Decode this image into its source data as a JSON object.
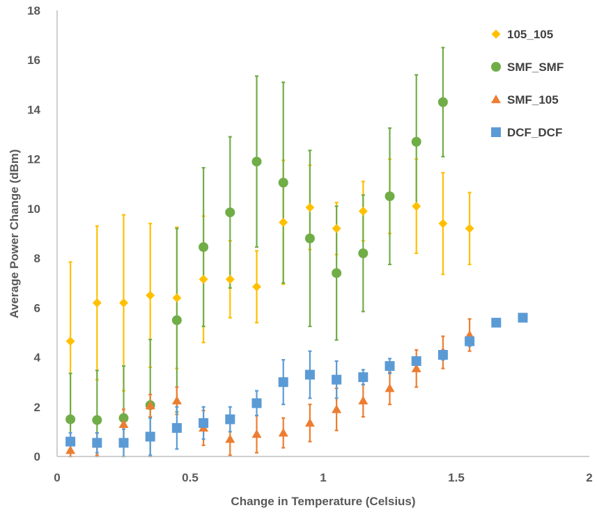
{
  "chart_data": {
    "type": "scatter",
    "title": "",
    "xlabel": "Change in Temperature  (Celsius)",
    "ylabel": "Average Power Change (dBm)",
    "xlim": [
      0,
      2
    ],
    "ylim": [
      0,
      18
    ],
    "x_ticks": [
      0,
      0.5,
      1,
      1.5,
      2
    ],
    "x_tick_labels": [
      "0",
      "0.5",
      "1",
      "1.5",
      "2"
    ],
    "y_ticks": [
      0,
      2,
      4,
      6,
      8,
      10,
      12,
      14,
      16,
      18
    ],
    "y_tick_labels": [
      "0",
      "2",
      "4",
      "6",
      "8",
      "10",
      "12",
      "14",
      "16",
      "18"
    ],
    "grid": false,
    "legend_position": "top-right",
    "series": [
      {
        "name": "105_105",
        "marker": "diamond",
        "color": "#FFC000",
        "points": [
          {
            "x": 0.05,
            "y": 4.65,
            "err": 3.2
          },
          {
            "x": 0.15,
            "y": 6.2,
            "err": 3.1
          },
          {
            "x": 0.25,
            "y": 6.2,
            "err": 3.55
          },
          {
            "x": 0.35,
            "y": 6.5,
            "err": 2.9
          },
          {
            "x": 0.45,
            "y": 6.4,
            "err": 2.85
          },
          {
            "x": 0.55,
            "y": 7.15,
            "err": 2.55
          },
          {
            "x": 0.65,
            "y": 7.15,
            "err": 1.55
          },
          {
            "x": 0.75,
            "y": 6.85,
            "err": 1.45
          },
          {
            "x": 0.85,
            "y": 9.45,
            "err": 2.5
          },
          {
            "x": 0.95,
            "y": 10.05,
            "err": 1.7
          },
          {
            "x": 1.05,
            "y": 9.2,
            "err": 1.05
          },
          {
            "x": 1.15,
            "y": 9.9,
            "err": 1.2
          },
          {
            "x": 1.25,
            "y": 10.5,
            "err": 1.5
          },
          {
            "x": 1.35,
            "y": 10.1,
            "err": 1.9
          },
          {
            "x": 1.45,
            "y": 9.4,
            "err": 2.05
          },
          {
            "x": 1.55,
            "y": 9.2,
            "err": 1.45
          }
        ]
      },
      {
        "name": "SMF_SMF",
        "marker": "circle",
        "color": "#70AD47",
        "points": [
          {
            "x": 0.05,
            "y": 1.5,
            "err": 1.85
          },
          {
            "x": 0.15,
            "y": 1.47,
            "err": 2.0
          },
          {
            "x": 0.25,
            "y": 1.55,
            "err": 2.1
          },
          {
            "x": 0.35,
            "y": 2.07,
            "err": 2.65
          },
          {
            "x": 0.45,
            "y": 5.5,
            "err": 3.7
          },
          {
            "x": 0.55,
            "y": 8.45,
            "err": 3.2
          },
          {
            "x": 0.65,
            "y": 9.85,
            "err": 3.05
          },
          {
            "x": 0.75,
            "y": 11.9,
            "err": 3.45
          },
          {
            "x": 0.85,
            "y": 11.05,
            "err": 4.05
          },
          {
            "x": 0.95,
            "y": 8.8,
            "err": 3.55
          },
          {
            "x": 1.05,
            "y": 7.4,
            "err": 2.7
          },
          {
            "x": 1.15,
            "y": 8.2,
            "err": 2.35
          },
          {
            "x": 1.25,
            "y": 10.5,
            "err": 2.75
          },
          {
            "x": 1.35,
            "y": 12.7,
            "err": 2.7
          },
          {
            "x": 1.45,
            "y": 14.3,
            "err": 2.2
          }
        ]
      },
      {
        "name": "SMF_105",
        "marker": "triangle",
        "color": "#ED7D31",
        "points": [
          {
            "x": 0.05,
            "y": 0.25,
            "err": 0.35
          },
          {
            "x": 0.15,
            "y": 0.5,
            "err": 0.45
          },
          {
            "x": 0.25,
            "y": 1.3,
            "err": 0.6
          },
          {
            "x": 0.35,
            "y": 2.05,
            "err": 0.45
          },
          {
            "x": 0.45,
            "y": 2.25,
            "err": 0.55
          },
          {
            "x": 0.55,
            "y": 1.15,
            "err": 0.7
          },
          {
            "x": 0.65,
            "y": 0.7,
            "err": 0.65
          },
          {
            "x": 0.75,
            "y": 0.9,
            "err": 0.75
          },
          {
            "x": 0.85,
            "y": 0.95,
            "err": 0.6
          },
          {
            "x": 0.95,
            "y": 1.35,
            "err": 0.75
          },
          {
            "x": 1.05,
            "y": 1.9,
            "err": 0.85
          },
          {
            "x": 1.15,
            "y": 2.25,
            "err": 0.65
          },
          {
            "x": 1.25,
            "y": 2.75,
            "err": 0.65
          },
          {
            "x": 1.35,
            "y": 3.55,
            "err": 0.75
          },
          {
            "x": 1.45,
            "y": 4.2,
            "err": 0.65
          },
          {
            "x": 1.55,
            "y": 4.9,
            "err": 0.65
          }
        ]
      },
      {
        "name": "DCF_DCF",
        "marker": "square",
        "color": "#5B9BD5",
        "points": [
          {
            "x": 0.05,
            "y": 0.6,
            "err": 0.35
          },
          {
            "x": 0.15,
            "y": 0.55,
            "err": 0.4
          },
          {
            "x": 0.25,
            "y": 0.55,
            "err": 0.55
          },
          {
            "x": 0.35,
            "y": 0.8,
            "err": 0.75
          },
          {
            "x": 0.45,
            "y": 1.15,
            "err": 0.85
          },
          {
            "x": 0.55,
            "y": 1.35,
            "err": 0.65
          },
          {
            "x": 0.65,
            "y": 1.5,
            "err": 0.5
          },
          {
            "x": 0.75,
            "y": 2.15,
            "err": 0.5
          },
          {
            "x": 0.85,
            "y": 3.0,
            "err": 0.9
          },
          {
            "x": 0.95,
            "y": 3.3,
            "err": 0.95
          },
          {
            "x": 1.05,
            "y": 3.1,
            "err": 0.75
          },
          {
            "x": 1.15,
            "y": 3.2,
            "err": 0.3
          },
          {
            "x": 1.25,
            "y": 3.65,
            "err": 0.3
          },
          {
            "x": 1.35,
            "y": 3.85,
            "err": 0.15
          },
          {
            "x": 1.45,
            "y": 4.1,
            "err": 0.2
          },
          {
            "x": 1.55,
            "y": 4.65,
            "err": 0.2
          },
          {
            "x": 1.65,
            "y": 5.4,
            "err": 0.15
          },
          {
            "x": 1.75,
            "y": 5.6,
            "err": 0.1
          }
        ]
      }
    ]
  }
}
